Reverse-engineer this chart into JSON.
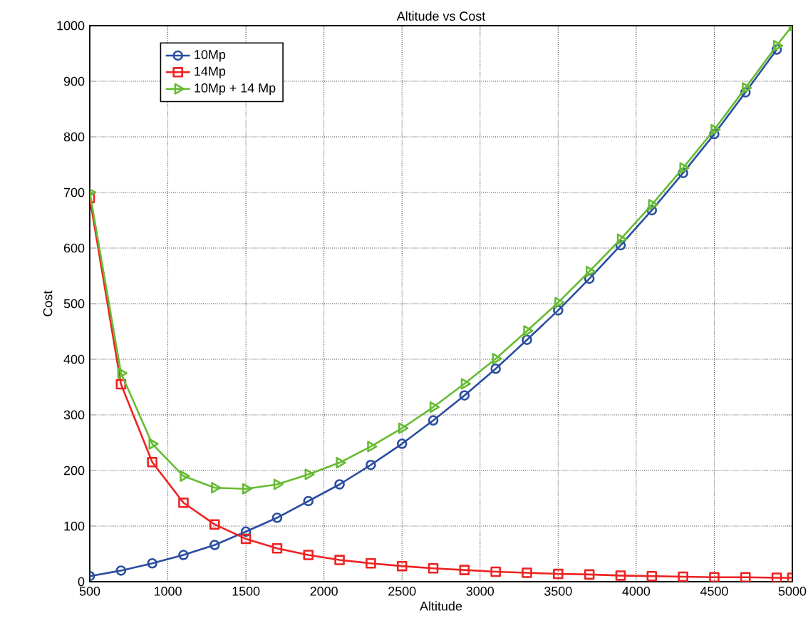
{
  "chart_data": {
    "type": "line",
    "title": "Altitude vs Cost",
    "xlabel": "Altitude",
    "ylabel": "Cost",
    "x": [
      500,
      700,
      900,
      1100,
      1300,
      1500,
      1700,
      1900,
      2100,
      2300,
      2500,
      2700,
      2900,
      3100,
      3300,
      3500,
      3700,
      3900,
      4100,
      4300,
      4500,
      4700,
      4900,
      5000
    ],
    "series": [
      {
        "name": "10Mp",
        "color": "#2a4ea0",
        "marker": "circle",
        "values": [
          10,
          20,
          33,
          48,
          66,
          90,
          115,
          145,
          175,
          210,
          248,
          290,
          335,
          383,
          435,
          488,
          545,
          605,
          668,
          735,
          805,
          880,
          957,
          null
        ]
      },
      {
        "name": "14Mp",
        "color": "#ee2222",
        "marker": "square",
        "values": [
          690,
          355,
          215,
          142,
          103,
          77,
          60,
          48,
          39,
          33,
          28,
          24,
          21,
          18,
          16,
          14,
          13,
          11,
          10,
          9,
          8,
          8,
          7,
          7
        ]
      },
      {
        "name": "10Mp + 14 Mp",
        "color": "#66bb33",
        "marker": "triangle",
        "values": [
          700,
          375,
          248,
          190,
          169,
          167,
          175,
          193,
          214,
          243,
          276,
          314,
          356,
          401,
          451,
          502,
          558,
          616,
          678,
          744,
          813,
          888,
          964,
          1000
        ]
      }
    ],
    "xlim": [
      500,
      5000
    ],
    "ylim": [
      0,
      1000
    ],
    "xticks": [
      500,
      1000,
      1500,
      2000,
      2500,
      3000,
      3500,
      4000,
      4500,
      5000
    ],
    "yticks": [
      0,
      100,
      200,
      300,
      400,
      500,
      600,
      700,
      800,
      900,
      1000
    ],
    "grid": true,
    "legend": "top left",
    "line_style": "solid"
  }
}
